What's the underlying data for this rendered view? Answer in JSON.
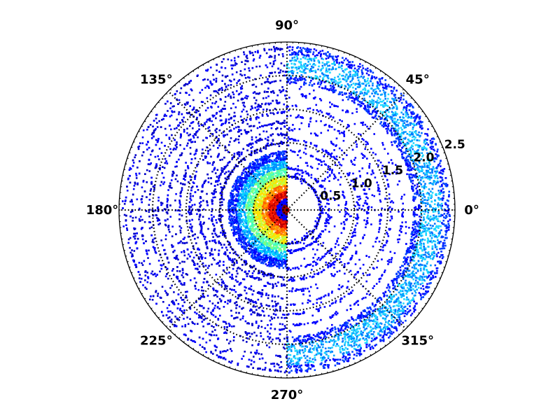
{
  "chart_data": {
    "type": "scatter",
    "projection": "polar",
    "title": "",
    "theta_unit": "degrees",
    "theta_tick_labels": [
      "0°",
      "45°",
      "90°",
      "135°",
      "180°",
      "225°",
      "270°",
      "315°"
    ],
    "theta_ticks": [
      0,
      45,
      90,
      135,
      180,
      225,
      270,
      315
    ],
    "r_ticks": [
      0.5,
      1.0,
      1.5,
      2.0,
      2.5
    ],
    "r_tick_labels": [
      "0.5",
      "1.0",
      "1.5",
      "2.0",
      "2.5"
    ],
    "r_tick_label_angle": 22.5,
    "rlim": [
      0,
      2.5
    ],
    "grid": true,
    "grid_style": "dotted",
    "colormap": "jet",
    "colorbar": false,
    "color_encodes": "local point density",
    "regions": [
      {
        "theta_range": [
          90,
          270
        ],
        "r_range": [
          0,
          0.9
        ],
        "density": "very high",
        "colors": [
          "#b00000",
          "#ff2000",
          "#ffd000",
          "#80ff80",
          "#00c0ff",
          "#0040ff"
        ]
      },
      {
        "theta_range": [
          90,
          270
        ],
        "r_range": [
          0.9,
          2.45
        ],
        "density": "low",
        "pattern": "concentric rings",
        "colors": [
          "#0000cd",
          "#0000ff"
        ]
      },
      {
        "theta_range": [
          -90,
          90
        ],
        "r_range": [
          1.85,
          2.45
        ],
        "density": "medium",
        "pattern": "band",
        "colors": [
          "#0060ff",
          "#00c8ff",
          "#30e0ff"
        ]
      },
      {
        "theta_range": [
          -90,
          90
        ],
        "r_range": [
          0.45,
          2.45
        ],
        "density": "sparse",
        "pattern": "scattered ring segments",
        "colors": [
          "#0000ff"
        ]
      }
    ]
  }
}
